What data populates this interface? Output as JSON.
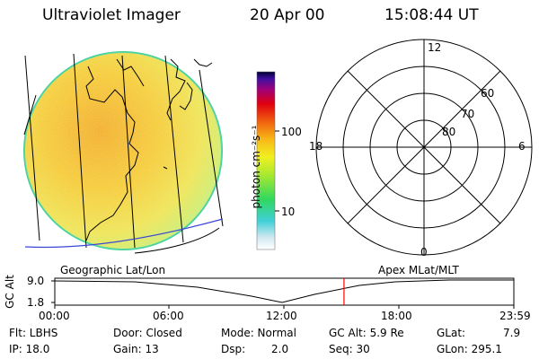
{
  "header": {
    "title": "Ultraviolet Imager",
    "date": "20 Apr 00",
    "time": "15:08:44 UT"
  },
  "colorbar": {
    "unit_label": "photon cm⁻²s⁻¹",
    "ticks": [
      "100",
      "10"
    ]
  },
  "polar": {
    "mlt_labels": {
      "top": "12",
      "left": "18",
      "right": "6",
      "bottom": "0"
    },
    "lat_labels": [
      "60",
      "70",
      "80"
    ]
  },
  "timeline": {
    "left_title": "Geographic Lat/Lon",
    "right_title": "Apex MLat/MLT",
    "axis_label": "GC Alt",
    "y_ticks": [
      "9.0",
      "1.8"
    ],
    "x_ticks": [
      "00:00",
      "06:00",
      "12:00",
      "18:00",
      "23:59"
    ],
    "current_time_fraction": 0.63,
    "marker_color": "#ff0000"
  },
  "status": {
    "flt": "Flt: LBHS",
    "ip": "IP: 18.0",
    "door": "Door: Closed",
    "gain": "Gain: 13",
    "mode": "Mode: Normal",
    "dsp_label": "Dsp:",
    "dsp_value": "2.0",
    "gc_alt": "GC Alt: 5.9 Re",
    "seq": "Seq: 30",
    "glat_label": "GLat:",
    "glat_value": "7.9",
    "glon": "GLon: 295.1"
  }
}
